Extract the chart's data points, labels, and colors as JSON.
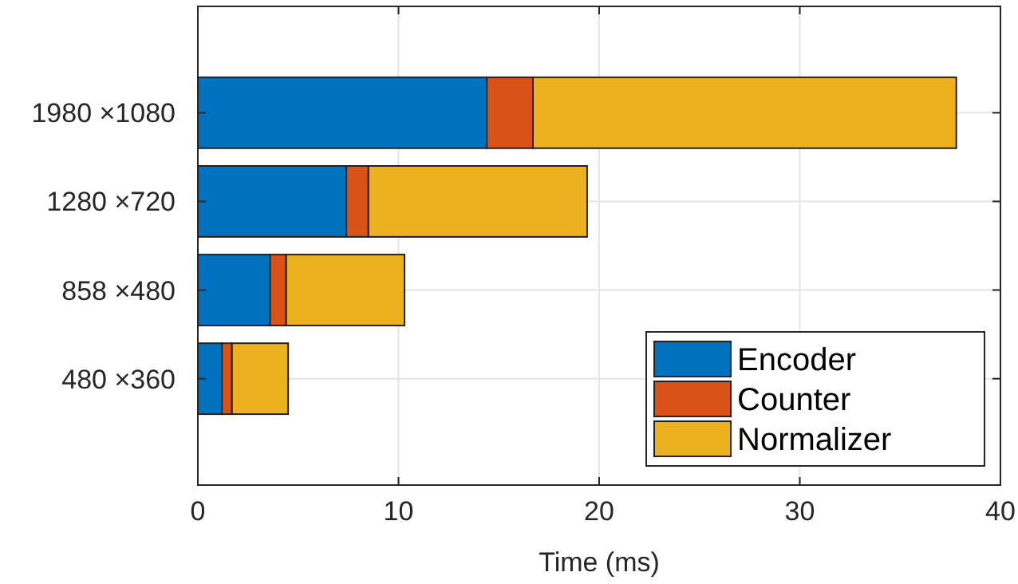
{
  "chart_data": {
    "type": "bar",
    "orientation": "horizontal",
    "stacked": true,
    "xlabel": "Time (ms)",
    "categories": [
      "1980 ×1080",
      "1280 ×720",
      "858 ×480",
      "480 ×360"
    ],
    "series": [
      {
        "name": "Encoder",
        "color": "#0072bd",
        "values": [
          14.4,
          7.4,
          3.6,
          1.2
        ]
      },
      {
        "name": "Counter",
        "color": "#d95319",
        "values": [
          2.3,
          1.1,
          0.8,
          0.5
        ]
      },
      {
        "name": "Normalizer",
        "color": "#edb120",
        "values": [
          21.1,
          10.9,
          5.9,
          2.8
        ]
      }
    ],
    "xlim": [
      0,
      40
    ],
    "xticks": [
      0,
      10,
      20,
      30,
      40
    ],
    "grid": true,
    "legend": "bottom right"
  }
}
